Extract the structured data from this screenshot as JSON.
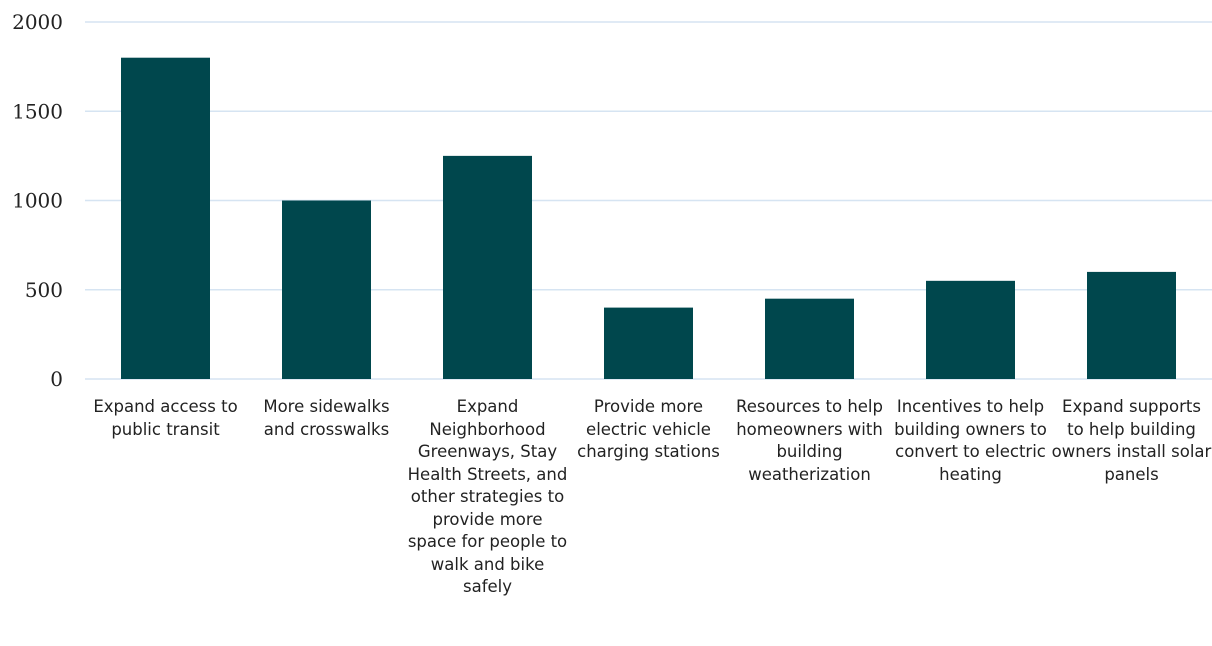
{
  "colors": {
    "bar": "#00474d",
    "grid": "#d6e4f2",
    "text": "#222222"
  },
  "chart_data": {
    "type": "bar",
    "title": "",
    "xlabel": "",
    "ylabel": "",
    "ylim": [
      0,
      2000
    ],
    "yticks": [
      0,
      500,
      1000,
      1500,
      2000
    ],
    "grid": true,
    "categories": [
      "Expand access to public transit",
      "More sidewalks and crosswalks",
      "Expand Neighborhood Greenways, Stay Health Streets, and other strategies to provide more space for people to walk and bike safely",
      "Provide more electric vehicle charging stations",
      "Resources to help homeowners with building weatherization",
      "Incentives to help building owners to convert to electric heating",
      "Expand supports to help building owners install solar panels"
    ],
    "values": [
      1800,
      1000,
      1250,
      400,
      450,
      550,
      600
    ]
  }
}
